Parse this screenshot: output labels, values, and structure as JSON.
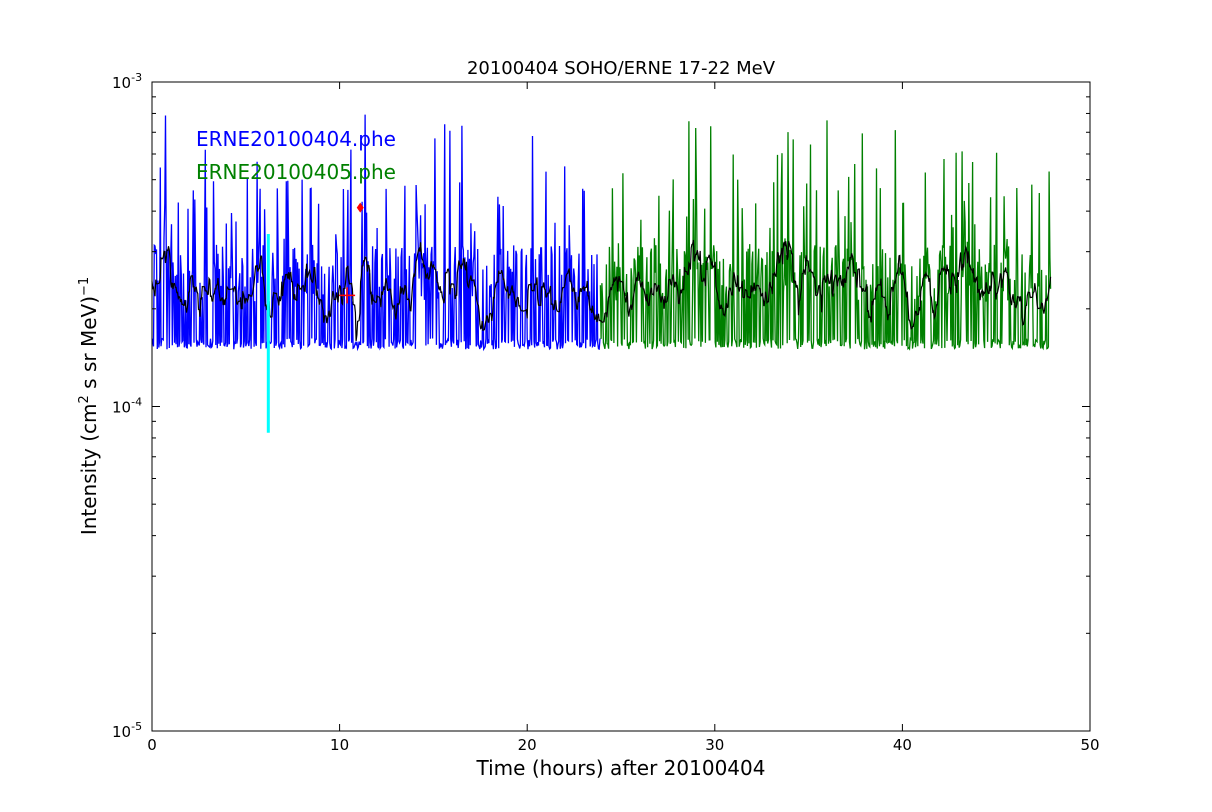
{
  "chart_data": {
    "type": "line",
    "title": "20100404 SOHO/ERNE 17-22 MeV",
    "xlabel": "Time (hours) after 20100404",
    "ylabel_main": "Intensity (cm",
    "ylabel_sup1": "2",
    "ylabel_mid": "  s sr MeV)",
    "ylabel_sup2": "−1",
    "xlim": [
      0,
      50
    ],
    "ylim": [
      1e-05,
      0.001
    ],
    "yscale": "log",
    "grid": false,
    "x_ticks": [
      0,
      10,
      20,
      30,
      40,
      50
    ],
    "x_tick_labels": [
      "0",
      "10",
      "20",
      "30",
      "40",
      "50"
    ],
    "y_ticks": [
      1e-05,
      0.0001,
      0.001
    ],
    "y_tick_bases": [
      "10",
      "10",
      "10"
    ],
    "y_tick_exps": [
      "-5",
      "-4",
      "-3"
    ],
    "legend_position": "top-left",
    "colors": {
      "series1": "#0000ff",
      "series2": "#008000",
      "smooth": "#000000",
      "marker_line": "#00ffff",
      "marker_point": "#ff0000"
    },
    "series": [
      {
        "name": "ERNE20100404.phe",
        "x_range": [
          0.0,
          23.9
        ],
        "baseline": 0.00015,
        "color": "#0000ff"
      },
      {
        "name": "ERNE20100405.phe",
        "x_range": [
          23.9,
          47.9
        ],
        "baseline": 0.00015,
        "color": "#008000"
      }
    ],
    "annotations": {
      "vertical_line": {
        "x": 6.2,
        "y_low": 8.3e-05,
        "y_high": 0.00034,
        "color": "#00ffff"
      },
      "cross_marker": {
        "x": 10.4,
        "y": 0.00022,
        "color": "#ff0000"
      },
      "diamond_marker": {
        "x": 11.1,
        "y": 0.00041,
        "color": "#ff0000"
      }
    }
  }
}
